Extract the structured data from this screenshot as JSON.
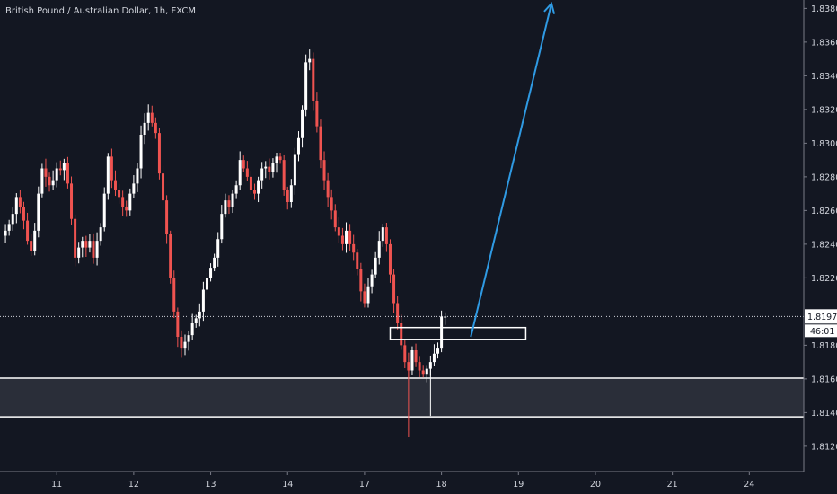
{
  "header": {
    "title": "British Pound / Australian Dollar, 1h, FXCM"
  },
  "price_labels": {
    "current_price": "1.81971",
    "countdown": "46:01"
  },
  "chart_data": {
    "type": "candlestick",
    "symbol": "British Pound / Australian Dollar",
    "interval": "1h",
    "source": "FXCM",
    "ylim": [
      1.8105,
      1.8385
    ],
    "y_ticks": [
      "1.83800",
      "1.83600",
      "1.83400",
      "1.83200",
      "1.83000",
      "1.82800",
      "1.82600",
      "1.82400",
      "1.82200",
      "1.81800",
      "1.81600",
      "1.81400",
      "1.81200"
    ],
    "y_tick_values": [
      1.838,
      1.836,
      1.834,
      1.832,
      1.83,
      1.828,
      1.826,
      1.824,
      1.822,
      1.818,
      1.816,
      1.814,
      1.812
    ],
    "x_ticks": [
      "11",
      "12",
      "13",
      "14",
      "17",
      "18",
      "19",
      "20",
      "21",
      "24"
    ],
    "x_tick_index": [
      15,
      36,
      57,
      78,
      99,
      120,
      141,
      162,
      183,
      204
    ],
    "bar_count": 215,
    "last_price": 1.81971,
    "support_zone": {
      "low": 1.81375,
      "high": 1.81605
    },
    "resistance_box": {
      "low": 1.81835,
      "high": 1.81905,
      "start_index": 106,
      "end_index": 143
    },
    "arrow": {
      "from_index": 128,
      "from_price": 1.8185,
      "to_index": 150,
      "to_price": 1.8385
    },
    "closes": [
      1.8245,
      1.8248,
      1.8252,
      1.8258,
      1.8268,
      1.8262,
      1.8254,
      1.8242,
      1.8236,
      1.8248,
      1.827,
      1.8285,
      1.828,
      1.8275,
      1.8278,
      1.8285,
      1.8284,
      1.8288,
      1.8276,
      1.8255,
      1.8232,
      1.8238,
      1.8242,
      1.8238,
      1.8242,
      1.8232,
      1.8242,
      1.825,
      1.827,
      1.8292,
      1.8278,
      1.8272,
      1.8268,
      1.8262,
      1.826,
      1.827,
      1.8276,
      1.8285,
      1.8305,
      1.8312,
      1.8318,
      1.8312,
      1.8306,
      1.8282,
      1.8266,
      1.8246,
      1.822,
      1.82,
      1.8185,
      1.8178,
      1.8182,
      1.8186,
      1.8193,
      1.8196,
      1.82,
      1.8213,
      1.822,
      1.8226,
      1.8232,
      1.8243,
      1.8258,
      1.8266,
      1.8262,
      1.827,
      1.8275,
      1.829,
      1.8285,
      1.828,
      1.8272,
      1.827,
      1.8278,
      1.8285,
      1.8286,
      1.8283,
      1.8288,
      1.8292,
      1.829,
      1.8272,
      1.8265,
      1.8275,
      1.8293,
      1.8303,
      1.832,
      1.8348,
      1.835,
      1.8325,
      1.831,
      1.829,
      1.8278,
      1.8268,
      1.826,
      1.825,
      1.8245,
      1.824,
      1.8248,
      1.824,
      1.8235,
      1.8225,
      1.8212,
      1.8205,
      1.8215,
      1.8222,
      1.8232,
      1.8242,
      1.825,
      1.824,
      1.8222,
      1.8205,
      1.8193,
      1.818,
      1.817,
      1.8165,
      1.8177,
      1.817,
      1.8165,
      1.8163,
      1.8166,
      1.817,
      1.8175,
      1.8178,
      1.8197,
      1.8197,
      1.8197,
      1.8197,
      1.8197,
      1.8197,
      1.8197,
      1.8197,
      1.8197,
      1.8197,
      1.8197,
      1.8197,
      1.8197,
      1.8197,
      1.8197,
      1.8197,
      1.8197,
      1.8197,
      1.8197,
      1.8197,
      1.8197,
      1.8197,
      1.8197,
      1.8197,
      1.8197,
      1.8197,
      1.8197,
      1.8197,
      1.8197,
      1.8197,
      1.8197,
      1.8197,
      1.8197,
      1.8197,
      1.8197,
      1.8197,
      1.8197,
      1.8197,
      1.8197,
      1.8197,
      1.8197,
      1.8197,
      1.8197,
      1.8197,
      1.8197,
      1.8197,
      1.8197,
      1.8197,
      1.8197,
      1.8197,
      1.8197,
      1.8197,
      1.8197,
      1.8197,
      1.8197,
      1.8197,
      1.8197,
      1.8197,
      1.8197,
      1.8197,
      1.8197,
      1.8197,
      1.8197,
      1.8197,
      1.8197,
      1.8197,
      1.8197,
      1.8197,
      1.8197,
      1.8197,
      1.8197,
      1.8197,
      1.8197,
      1.8197,
      1.8197,
      1.8197,
      1.8197,
      1.8197,
      1.8197,
      1.8197,
      1.8197,
      1.8197,
      1.8197,
      1.8197,
      1.8197,
      1.8197,
      1.8197,
      1.8197,
      1.8197,
      1.8197,
      1.8197,
      1.8197,
      1.8197,
      1.8197,
      1.8197,
      1.8197
    ],
    "filled_bars": 122,
    "colors": {
      "bull": "#ffffff",
      "bear": "#ef5350",
      "background": "#131722",
      "arrow": "#2f9ae3",
      "zone_fill": "#2a2e39",
      "grid": "#2a2e39"
    }
  }
}
